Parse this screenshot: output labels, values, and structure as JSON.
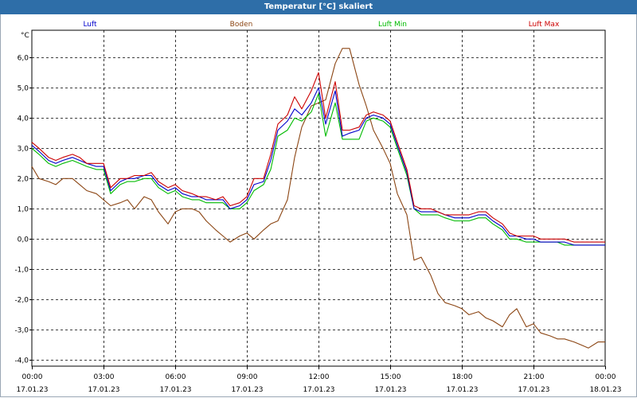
{
  "window": {
    "title": "Temperatur [°C] skaliert"
  },
  "chart_data": {
    "type": "line",
    "title": "Temperatur [°C] skaliert",
    "ylabel": "°C",
    "xlabel": "",
    "ylim": [
      -4.2,
      6.9
    ],
    "xlim": [
      0,
      24
    ],
    "grid": true,
    "legend_position": "top",
    "y_ticks": [
      "6,0",
      "5,0",
      "4,0",
      "3,0",
      "2,0",
      "1,0",
      "0,0",
      "-1,0",
      "-2,0",
      "-3,0",
      "-4,0"
    ],
    "y_tick_values": [
      6,
      5,
      4,
      3,
      2,
      1,
      0,
      -1,
      -2,
      -3,
      -4
    ],
    "x_ticks": [
      {
        "time": "00:00",
        "date": "17.01.23"
      },
      {
        "time": "03:00",
        "date": "17.01.23"
      },
      {
        "time": "06:00",
        "date": "17.01.23"
      },
      {
        "time": "09:00",
        "date": "17.01.23"
      },
      {
        "time": "12:00",
        "date": "17.01.23"
      },
      {
        "time": "15:00",
        "date": "17.01.23"
      },
      {
        "time": "18:00",
        "date": "17.01.23"
      },
      {
        "time": "21:00",
        "date": "17.01.23"
      },
      {
        "time": "00:00",
        "date": "18.01.23"
      }
    ],
    "x_tick_hours": [
      0,
      3,
      6,
      9,
      12,
      15,
      18,
      21,
      24
    ],
    "series": [
      {
        "name": "Luft",
        "color": "#0000cc",
        "x": [
          0,
          0.3,
          0.7,
          1,
          1.3,
          1.7,
          2,
          2.3,
          2.7,
          3,
          3.3,
          3.7,
          4,
          4.3,
          4.7,
          5,
          5.3,
          5.7,
          6,
          6.3,
          6.7,
          7,
          7.3,
          7.7,
          8,
          8.3,
          8.7,
          9,
          9.3,
          9.7,
          10,
          10.3,
          10.7,
          11,
          11.3,
          11.7,
          12,
          12.3,
          12.7,
          13,
          13.3,
          13.7,
          14,
          14.3,
          14.7,
          15,
          15.3,
          15.7,
          16,
          16.3,
          16.7,
          17,
          17.3,
          17.7,
          18,
          18.3,
          18.7,
          19,
          19.3,
          19.7,
          20,
          20.3,
          20.7,
          21,
          21.3,
          21.7,
          22,
          22.3,
          22.7,
          23,
          23.3,
          23.7,
          24
        ],
        "values": [
          3.1,
          2.9,
          2.6,
          2.5,
          2.6,
          2.7,
          2.6,
          2.5,
          2.4,
          2.4,
          1.6,
          1.9,
          2.0,
          2.0,
          2.1,
          2.1,
          1.8,
          1.6,
          1.7,
          1.5,
          1.4,
          1.4,
          1.3,
          1.3,
          1.3,
          1.0,
          1.1,
          1.3,
          1.8,
          1.9,
          2.6,
          3.6,
          3.9,
          4.3,
          4.1,
          4.5,
          5.0,
          3.8,
          4.9,
          3.4,
          3.5,
          3.6,
          4.0,
          4.1,
          4.0,
          3.8,
          3.1,
          2.2,
          1.0,
          0.9,
          0.9,
          0.9,
          0.8,
          0.7,
          0.7,
          0.7,
          0.8,
          0.8,
          0.6,
          0.4,
          0.1,
          0.1,
          0.0,
          0.0,
          -0.1,
          -0.1,
          -0.1,
          -0.1,
          -0.2,
          -0.2,
          -0.2,
          -0.2,
          -0.2
        ]
      },
      {
        "name": "Boden",
        "color": "#8b4513",
        "x": [
          0,
          0.3,
          0.7,
          1,
          1.3,
          1.7,
          2,
          2.3,
          2.7,
          3,
          3.3,
          3.7,
          4,
          4.3,
          4.7,
          5,
          5.3,
          5.7,
          6,
          6.3,
          6.7,
          7,
          7.3,
          7.7,
          8,
          8.3,
          8.7,
          9,
          9.3,
          9.7,
          10,
          10.3,
          10.7,
          11,
          11.3,
          11.7,
          12,
          12.3,
          12.7,
          13,
          13.3,
          13.7,
          14,
          14.3,
          14.7,
          15,
          15.3,
          15.7,
          16,
          16.3,
          16.7,
          17,
          17.3,
          17.7,
          18,
          18.3,
          18.7,
          19,
          19.3,
          19.7,
          20,
          20.3,
          20.7,
          21,
          21.3,
          21.7,
          22,
          22.3,
          22.7,
          23,
          23.3,
          23.7,
          24
        ],
        "values": [
          2.4,
          2.0,
          1.9,
          1.8,
          2.0,
          2.0,
          1.8,
          1.6,
          1.5,
          1.3,
          1.1,
          1.2,
          1.3,
          1.0,
          1.4,
          1.3,
          0.9,
          0.5,
          0.9,
          1.0,
          1.0,
          0.9,
          0.6,
          0.3,
          0.1,
          -0.1,
          0.1,
          0.2,
          0.0,
          0.3,
          0.5,
          0.6,
          1.3,
          2.7,
          3.7,
          4.4,
          4.5,
          4.6,
          5.8,
          6.3,
          6.3,
          5.1,
          4.4,
          3.6,
          3.0,
          2.5,
          1.5,
          0.8,
          -0.7,
          -0.6,
          -1.2,
          -1.8,
          -2.1,
          -2.2,
          -2.3,
          -2.5,
          -2.4,
          -2.6,
          -2.7,
          -2.9,
          -2.5,
          -2.3,
          -2.9,
          -2.8,
          -3.1,
          -3.2,
          -3.3,
          -3.3,
          -3.4,
          -3.5,
          -3.6,
          -3.4,
          -3.4
        ]
      },
      {
        "name": "Luft Min",
        "color": "#00bb00",
        "x": [
          0,
          0.3,
          0.7,
          1,
          1.3,
          1.7,
          2,
          2.3,
          2.7,
          3,
          3.3,
          3.7,
          4,
          4.3,
          4.7,
          5,
          5.3,
          5.7,
          6,
          6.3,
          6.7,
          7,
          7.3,
          7.7,
          8,
          8.3,
          8.7,
          9,
          9.3,
          9.7,
          10,
          10.3,
          10.7,
          11,
          11.3,
          11.7,
          12,
          12.3,
          12.7,
          13,
          13.3,
          13.7,
          14,
          14.3,
          14.7,
          15,
          15.3,
          15.7,
          16,
          16.3,
          16.7,
          17,
          17.3,
          17.7,
          18,
          18.3,
          18.7,
          19,
          19.3,
          19.7,
          20,
          20.3,
          20.7,
          21,
          21.3,
          21.7,
          22,
          22.3,
          22.7,
          23,
          23.3,
          23.7,
          24
        ],
        "values": [
          3.0,
          2.8,
          2.5,
          2.4,
          2.5,
          2.6,
          2.5,
          2.4,
          2.3,
          2.3,
          1.5,
          1.8,
          1.9,
          1.9,
          2.0,
          2.0,
          1.7,
          1.5,
          1.6,
          1.4,
          1.3,
          1.3,
          1.2,
          1.2,
          1.2,
          1.0,
          1.0,
          1.2,
          1.6,
          1.8,
          2.3,
          3.4,
          3.6,
          4.0,
          3.9,
          4.2,
          4.8,
          3.4,
          4.5,
          3.3,
          3.3,
          3.3,
          3.9,
          4.0,
          3.9,
          3.7,
          3.0,
          2.1,
          1.0,
          0.8,
          0.8,
          0.8,
          0.7,
          0.6,
          0.6,
          0.6,
          0.7,
          0.7,
          0.5,
          0.3,
          0.0,
          0.0,
          -0.1,
          -0.1,
          -0.1,
          -0.1,
          -0.1,
          -0.2,
          -0.2,
          -0.2,
          -0.2,
          -0.2,
          -0.2
        ]
      },
      {
        "name": "Luft Max",
        "color": "#cc0000",
        "x": [
          0,
          0.3,
          0.7,
          1,
          1.3,
          1.7,
          2,
          2.3,
          2.7,
          3,
          3.3,
          3.7,
          4,
          4.3,
          4.7,
          5,
          5.3,
          5.7,
          6,
          6.3,
          6.7,
          7,
          7.3,
          7.7,
          8,
          8.3,
          8.7,
          9,
          9.3,
          9.7,
          10,
          10.3,
          10.7,
          11,
          11.3,
          11.7,
          12,
          12.3,
          12.7,
          13,
          13.3,
          13.7,
          14,
          14.3,
          14.7,
          15,
          15.3,
          15.7,
          16,
          16.3,
          16.7,
          17,
          17.3,
          17.7,
          18,
          18.3,
          18.7,
          19,
          19.3,
          19.7,
          20,
          20.3,
          20.7,
          21,
          21.3,
          21.7,
          22,
          22.3,
          22.7,
          23,
          23.3,
          23.7,
          24
        ],
        "values": [
          3.2,
          3.0,
          2.7,
          2.6,
          2.7,
          2.8,
          2.7,
          2.5,
          2.5,
          2.5,
          1.7,
          2.0,
          2.0,
          2.1,
          2.1,
          2.2,
          1.9,
          1.7,
          1.8,
          1.6,
          1.5,
          1.4,
          1.4,
          1.3,
          1.4,
          1.1,
          1.2,
          1.4,
          2.0,
          2.0,
          2.8,
          3.8,
          4.1,
          4.7,
          4.3,
          4.9,
          5.5,
          4.0,
          5.2,
          3.6,
          3.6,
          3.7,
          4.1,
          4.2,
          4.1,
          3.9,
          3.2,
          2.3,
          1.1,
          1.0,
          1.0,
          0.9,
          0.8,
          0.8,
          0.8,
          0.8,
          0.9,
          0.9,
          0.7,
          0.5,
          0.2,
          0.1,
          0.1,
          0.1,
          0.0,
          0.0,
          0.0,
          0.0,
          -0.1,
          -0.1,
          -0.1,
          -0.1,
          -0.1
        ]
      }
    ]
  }
}
